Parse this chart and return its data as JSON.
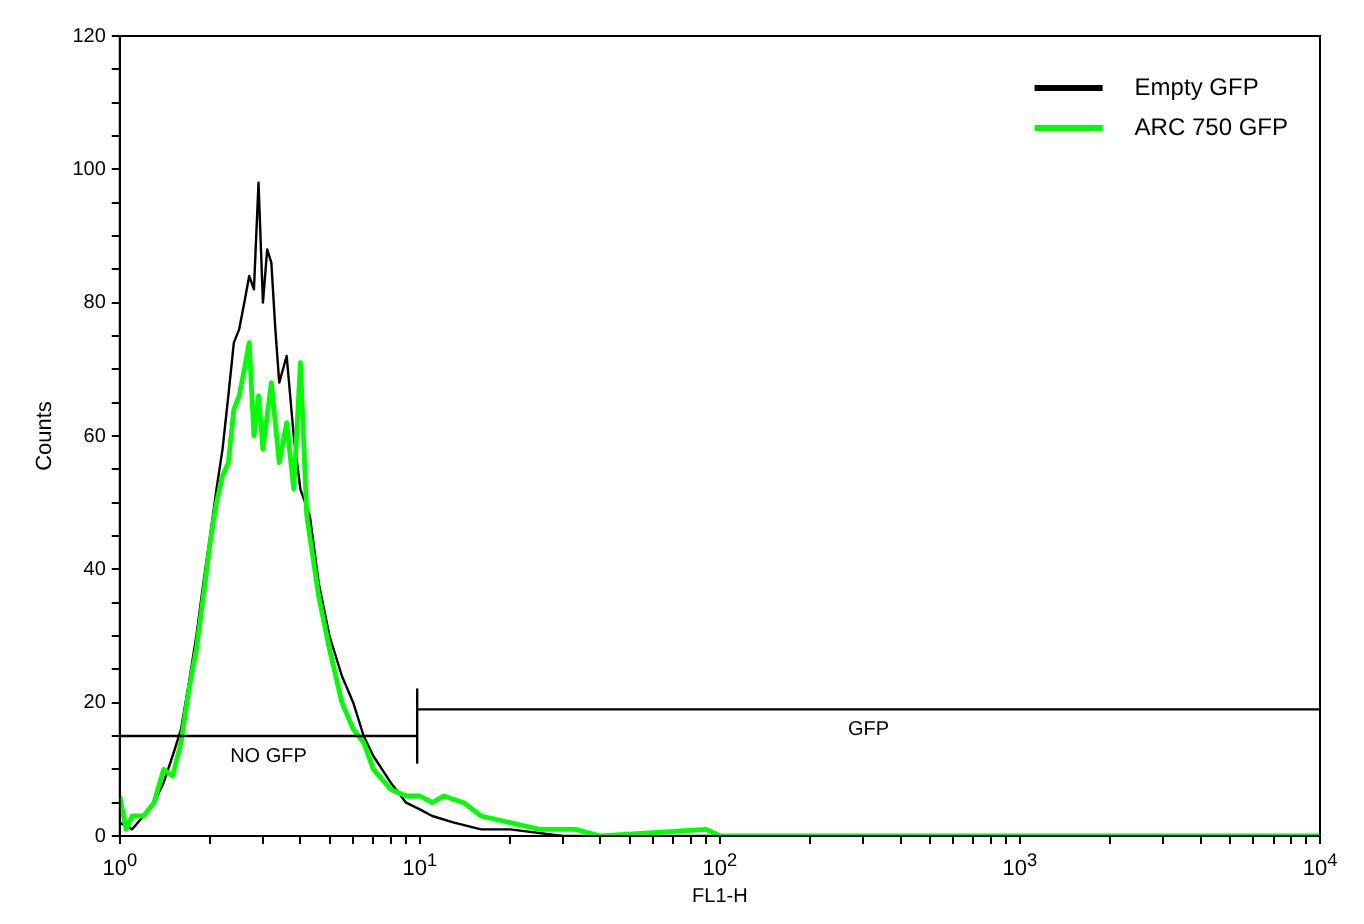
{
  "chart_data": {
    "type": "line",
    "xlabel": "FL1-H",
    "ylabel": "Counts",
    "log": "x",
    "legend": "top right",
    "grid": false,
    "marker": "none",
    "line_style": "solid",
    "xlim": [
      1,
      10000
    ],
    "ylim": [
      0,
      120
    ],
    "xticks": [
      {
        "value": 1,
        "label": "10$^{0}$"
      },
      {
        "value": 2,
        "label": null
      },
      {
        "value": 3,
        "label": null
      },
      {
        "value": 4,
        "label": null
      },
      {
        "value": 5,
        "label": null
      },
      {
        "value": 6,
        "label": null
      },
      {
        "value": 7,
        "label": null
      },
      {
        "value": 8,
        "label": null
      },
      {
        "value": 9,
        "label": null
      },
      {
        "value": 10,
        "label": "10$^{1}$"
      },
      {
        "value": 20,
        "label": null
      },
      {
        "value": 30,
        "label": null
      },
      {
        "value": 40,
        "label": null
      },
      {
        "value": 50,
        "label": null
      },
      {
        "value": 60,
        "label": null
      },
      {
        "value": 70,
        "label": null
      },
      {
        "value": 80,
        "label": null
      },
      {
        "value": 90,
        "label": null
      },
      {
        "value": 100,
        "label": "10$^{2}$"
      },
      {
        "value": 200,
        "label": null
      },
      {
        "value": 300,
        "label": null
      },
      {
        "value": 400,
        "label": null
      },
      {
        "value": 500,
        "label": null
      },
      {
        "value": 600,
        "label": null
      },
      {
        "value": 700,
        "label": null
      },
      {
        "value": 800,
        "label": null
      },
      {
        "value": 900,
        "label": null
      },
      {
        "value": 1000,
        "label": "10$^{3}$"
      },
      {
        "value": 2000,
        "label": null
      },
      {
        "value": 3000,
        "label": null
      },
      {
        "value": 4000,
        "label": null
      },
      {
        "value": 5000,
        "label": null
      },
      {
        "value": 6000,
        "label": null
      },
      {
        "value": 7000,
        "label": null
      },
      {
        "value": 8000,
        "label": null
      },
      {
        "value": 9000,
        "label": null
      },
      {
        "value": 10000,
        "label": "10$^{4}$"
      }
    ],
    "yticks": [
      0,
      {
        "value": 5,
        "label": null
      },
      {
        "value": 10,
        "label": null
      },
      {
        "value": 15,
        "label": null
      },
      20,
      {
        "value": 25,
        "label": null
      },
      {
        "value": 30,
        "label": null
      },
      {
        "value": 35,
        "label": null
      },
      40,
      {
        "value": 45,
        "label": null
      },
      {
        "value": 50,
        "label": null
      },
      {
        "value": 55,
        "label": null
      },
      60,
      {
        "value": 65,
        "label": null
      },
      {
        "value": 70,
        "label": null
      },
      {
        "value": 75,
        "label": null
      },
      80,
      {
        "value": 85,
        "label": null
      },
      {
        "value": 90,
        "label": null
      },
      {
        "value": 95,
        "label": null
      },
      100,
      {
        "value": 105,
        "label": null
      },
      {
        "value": 110,
        "label": null
      },
      {
        "value": 115,
        "label": null
      },
      120
    ],
    "annotations": [
      "NO GFP",
      "GFP"
    ],
    "series": [
      {
        "name": "Empty GFP",
        "color": "#000000",
        "x": [
          1,
          1.1,
          1.2,
          1.3,
          1.4,
          1.5,
          1.6,
          1.7,
          1.8,
          1.9,
          2.0,
          2.1,
          2.2,
          2.3,
          2.4,
          2.5,
          2.6,
          2.7,
          2.8,
          2.9,
          3.0,
          3.1,
          3.2,
          3.3,
          3.4,
          3.6,
          3.8,
          4.0,
          4.3,
          4.6,
          5.0,
          5.5,
          6.0,
          6.5,
          7,
          8,
          9,
          10,
          11,
          13,
          16,
          20,
          30,
          100,
          10000
        ],
        "values": [
          2,
          1,
          3,
          5,
          8,
          12,
          16,
          23,
          30,
          38,
          45,
          52,
          58,
          66,
          74,
          76,
          80,
          84,
          82,
          98,
          80,
          88,
          86,
          76,
          68,
          72,
          60,
          52,
          48,
          38,
          30,
          24,
          20,
          15,
          12,
          8,
          5,
          4,
          3,
          2,
          1,
          1,
          0,
          0,
          0
        ]
      },
      {
        "name": "ARC 750 GFP",
        "color": "#00ff00",
        "x": [
          1,
          1.05,
          1.1,
          1.2,
          1.3,
          1.4,
          1.5,
          1.6,
          1.7,
          1.8,
          1.9,
          2.0,
          2.1,
          2.2,
          2.3,
          2.4,
          2.5,
          2.6,
          2.7,
          2.8,
          2.9,
          3.0,
          3.2,
          3.4,
          3.6,
          3.8,
          4.0,
          4.2,
          4.6,
          5.0,
          5.5,
          6,
          6.5,
          7,
          8,
          9,
          10,
          11,
          12,
          14,
          16,
          20,
          25,
          33,
          40,
          90,
          100,
          10000
        ],
        "values": [
          6,
          1,
          3,
          3,
          5,
          10,
          9,
          14,
          22,
          28,
          36,
          44,
          50,
          54,
          56,
          64,
          66,
          70,
          74,
          60,
          66,
          58,
          68,
          56,
          62,
          52,
          71,
          48,
          36,
          28,
          20,
          16,
          14,
          10,
          7,
          6,
          6,
          5,
          6,
          5,
          3,
          2,
          1,
          1,
          0,
          1,
          0,
          0
        ]
      },
      {
        "color": "#000000",
        "x": [
          1,
          9.8
        ],
        "values": [
          15,
          15
        ]
      },
      {
        "color": "#000000",
        "x": [
          9.8,
          9.8,
          9.8,
          10000
        ],
        "values": [
          22,
          11,
          19,
          19
        ]
      }
    ]
  }
}
